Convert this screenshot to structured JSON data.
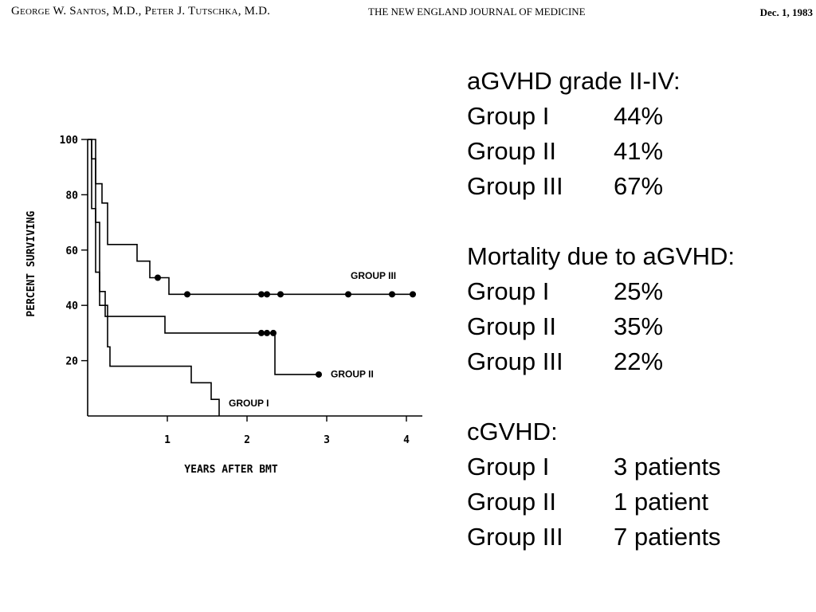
{
  "header": {
    "authors": "George W. Santos, M.D., Peter J. Tutschka, M.D.",
    "journal": "THE NEW ENGLAND JOURNAL OF MEDICINE",
    "date": "Dec. 1, 1983"
  },
  "chart_data": {
    "type": "line",
    "step": true,
    "xlabel": "YEARS AFTER BMT",
    "ylabel": "PERCENT SURVIVING",
    "xlim": [
      0,
      4.2
    ],
    "ylim": [
      0,
      100
    ],
    "xticks": [
      "1",
      "2",
      "3",
      "4"
    ],
    "yticks": [
      "20",
      "40",
      "60",
      "80",
      "100"
    ],
    "series": [
      {
        "name": "GROUP I",
        "points": [
          [
            0,
            100
          ],
          [
            0.05,
            75
          ],
          [
            0.1,
            52
          ],
          [
            0.15,
            40
          ],
          [
            0.25,
            25
          ],
          [
            0.28,
            18
          ],
          [
            1.3,
            12
          ],
          [
            1.55,
            6
          ],
          [
            1.65,
            0
          ]
        ],
        "censored": []
      },
      {
        "name": "GROUP II",
        "points": [
          [
            0,
            100
          ],
          [
            0.05,
            93
          ],
          [
            0.1,
            70
          ],
          [
            0.15,
            45
          ],
          [
            0.22,
            36
          ],
          [
            0.97,
            30
          ],
          [
            2.35,
            15
          ],
          [
            2.9,
            15
          ]
        ],
        "censored": [
          [
            2.18,
            30
          ],
          [
            2.25,
            30
          ],
          [
            2.33,
            30
          ],
          [
            2.9,
            15
          ]
        ]
      },
      {
        "name": "GROUP III",
        "points": [
          [
            0,
            100
          ],
          [
            0.1,
            84
          ],
          [
            0.18,
            77
          ],
          [
            0.25,
            62
          ],
          [
            0.62,
            56
          ],
          [
            0.78,
            50
          ],
          [
            1.02,
            44
          ],
          [
            4.1,
            44
          ]
        ],
        "censored": [
          [
            0.88,
            50
          ],
          [
            1.25,
            44
          ],
          [
            2.18,
            44
          ],
          [
            2.25,
            44
          ],
          [
            2.42,
            44
          ],
          [
            3.27,
            44
          ],
          [
            3.82,
            44
          ],
          [
            4.08,
            44
          ]
        ]
      }
    ]
  },
  "stats": [
    {
      "heading": "aGVHD grade II-IV:",
      "rows": [
        {
          "label": "Group I",
          "value": "44%"
        },
        {
          "label": "Group II",
          "value": "41%"
        },
        {
          "label": "Group III",
          "value": "67%"
        }
      ]
    },
    {
      "heading": "Mortality due to aGVHD:",
      "rows": [
        {
          "label": "Group I",
          "value": "25%"
        },
        {
          "label": "Group II",
          "value": "35%"
        },
        {
          "label": "Group III",
          "value": "22%"
        }
      ]
    },
    {
      "heading": "cGVHD:",
      "rows": [
        {
          "label": "Group I",
          "value": "3 patients"
        },
        {
          "label": "Group II",
          "value": "1 patient"
        },
        {
          "label": "Group III",
          "value": "7 patients"
        }
      ]
    }
  ]
}
